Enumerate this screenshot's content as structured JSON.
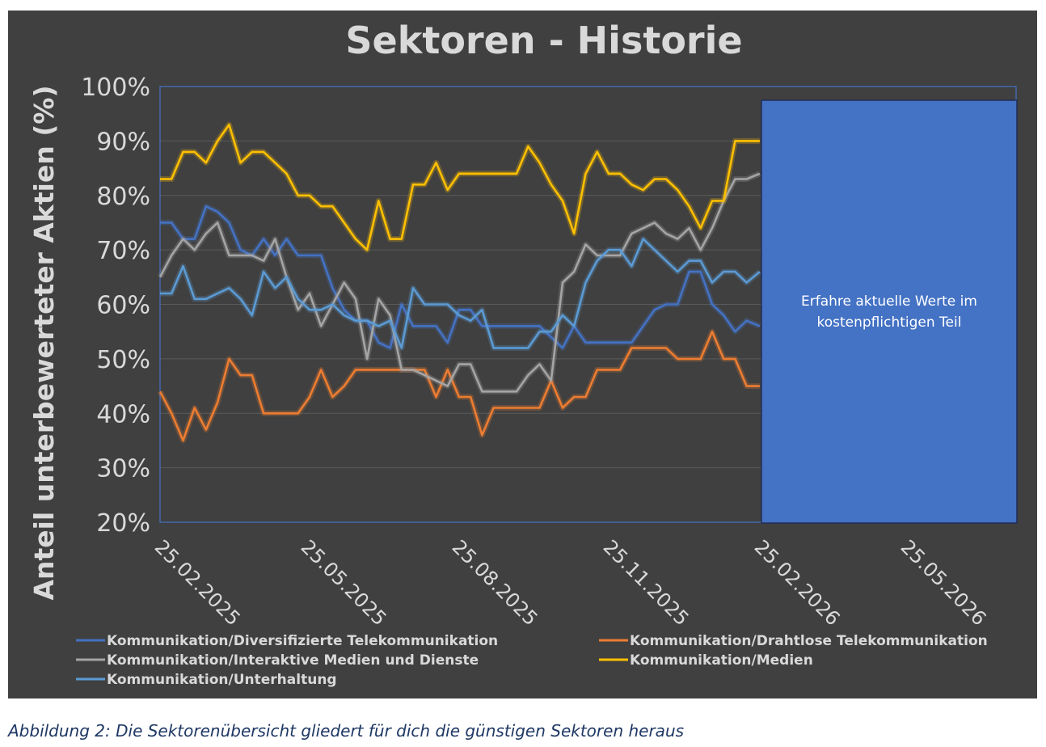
{
  "caption": "Abbildung 2: Die Sektorenübersicht gliedert für dich die günstigen Sektoren heraus",
  "chart_data": {
    "type": "line",
    "title": "Sektoren - Historie",
    "xlabel": "",
    "ylabel": "Anteil unterbewerteter Aktien (%)",
    "ylim": [
      20,
      100
    ],
    "yticks": [
      "20%",
      "30%",
      "40%",
      "50%",
      "60%",
      "70%",
      "80%",
      "90%",
      "100%"
    ],
    "xlim": [
      "2025-02-25",
      "2026-07-31"
    ],
    "xticks": [
      {
        "date": "2025-02-25",
        "label": "25.02.2025"
      },
      {
        "date": "2025-05-25",
        "label": "25.05.2025"
      },
      {
        "date": "2025-08-25",
        "label": "25.08.2025"
      },
      {
        "date": "2025-11-25",
        "label": "25.11.2025"
      },
      {
        "date": "2026-02-25",
        "label": "25.02.2026"
      },
      {
        "date": "2026-05-25",
        "label": "25.05.2026"
      }
    ],
    "grid": true,
    "legend": "bottom",
    "overlay": {
      "text": "Erfahre aktuelle Werte im kostenpflichtigen Teil",
      "from": "2026-02-26",
      "to": "2026-07-31",
      "color": "#4472c4"
    },
    "x": [
      "2025-02-25",
      "2025-03-04",
      "2025-03-11",
      "2025-03-18",
      "2025-03-25",
      "2025-04-01",
      "2025-04-08",
      "2025-04-15",
      "2025-04-22",
      "2025-04-29",
      "2025-05-06",
      "2025-05-13",
      "2025-05-20",
      "2025-05-27",
      "2025-06-03",
      "2025-06-10",
      "2025-06-17",
      "2025-06-24",
      "2025-07-01",
      "2025-07-08",
      "2025-07-15",
      "2025-07-22",
      "2025-07-29",
      "2025-08-05",
      "2025-08-12",
      "2025-08-19",
      "2025-08-26",
      "2025-09-02",
      "2025-09-09",
      "2025-09-16",
      "2025-09-23",
      "2025-09-30",
      "2025-10-07",
      "2025-10-14",
      "2025-10-21",
      "2025-10-28",
      "2025-11-04",
      "2025-11-11",
      "2025-11-18",
      "2025-11-25",
      "2025-12-02",
      "2025-12-09",
      "2025-12-16",
      "2025-12-23",
      "2025-12-30",
      "2026-01-06",
      "2026-01-13",
      "2026-01-20",
      "2026-01-27",
      "2026-02-03",
      "2026-02-10",
      "2026-02-17",
      "2026-02-25"
    ],
    "series": [
      {
        "name": "Kommunikation/Diversifizierte Telekommunikation",
        "color": "#4472c4",
        "values": [
          75,
          75,
          72,
          72,
          78,
          77,
          75,
          70,
          69,
          72,
          69,
          72,
          69,
          69,
          69,
          63,
          59,
          57,
          57,
          53,
          52,
          60,
          56,
          56,
          56,
          53,
          59,
          59,
          56,
          56,
          56,
          56,
          56,
          56,
          54,
          52,
          56,
          53,
          53,
          53,
          53,
          53,
          56,
          59,
          60,
          60,
          66,
          66,
          60,
          58,
          55,
          57,
          56
        ]
      },
      {
        "name": "Kommunikation/Drahtlose Telekommunikation",
        "color": "#ed7d31",
        "values": [
          44,
          40,
          35,
          41,
          37,
          42,
          50,
          47,
          47,
          40,
          40,
          40,
          40,
          43,
          48,
          43,
          45,
          48,
          48,
          48,
          48,
          48,
          48,
          48,
          43,
          48,
          43,
          43,
          36,
          41,
          41,
          41,
          41,
          41,
          46,
          41,
          43,
          43,
          48,
          48,
          48,
          52,
          52,
          52,
          52,
          50,
          50,
          50,
          55,
          50,
          50,
          45,
          45
        ]
      },
      {
        "name": "Kommunikation/Interaktive Medien und Dienste",
        "color": "#a5a5a5",
        "values": [
          65,
          69,
          72,
          70,
          73,
          75,
          69,
          69,
          69,
          68,
          72,
          65,
          59,
          62,
          56,
          60,
          64,
          61,
          50,
          61,
          58,
          48,
          48,
          47,
          46,
          45,
          49,
          49,
          44,
          44,
          44,
          44,
          47,
          49,
          46,
          64,
          66,
          71,
          69,
          69,
          69,
          73,
          74,
          75,
          73,
          72,
          74,
          70,
          74,
          79,
          83,
          83,
          84
        ]
      },
      {
        "name": "Kommunikation/Medien",
        "color": "#ffc000",
        "values": [
          83,
          83,
          88,
          88,
          86,
          90,
          93,
          86,
          88,
          88,
          86,
          84,
          80,
          80,
          78,
          78,
          75,
          72,
          70,
          79,
          72,
          72,
          82,
          82,
          86,
          81,
          84,
          84,
          84,
          84,
          84,
          84,
          89,
          86,
          82,
          79,
          73,
          84,
          88,
          84,
          84,
          82,
          81,
          83,
          83,
          81,
          78,
          74,
          79,
          79,
          90,
          90,
          90
        ]
      },
      {
        "name": "Kommunikation/Unterhaltung",
        "color": "#5b9bd5",
        "values": [
          62,
          62,
          67,
          61,
          61,
          62,
          63,
          61,
          58,
          66,
          63,
          65,
          61,
          59,
          59,
          60,
          58,
          57,
          57,
          56,
          57,
          52,
          63,
          60,
          60,
          60,
          58,
          57,
          59,
          52,
          52,
          52,
          52,
          55,
          55,
          58,
          56,
          64,
          68,
          70,
          70,
          67,
          72,
          70,
          68,
          66,
          68,
          68,
          64,
          66,
          66,
          64,
          66
        ]
      }
    ]
  }
}
